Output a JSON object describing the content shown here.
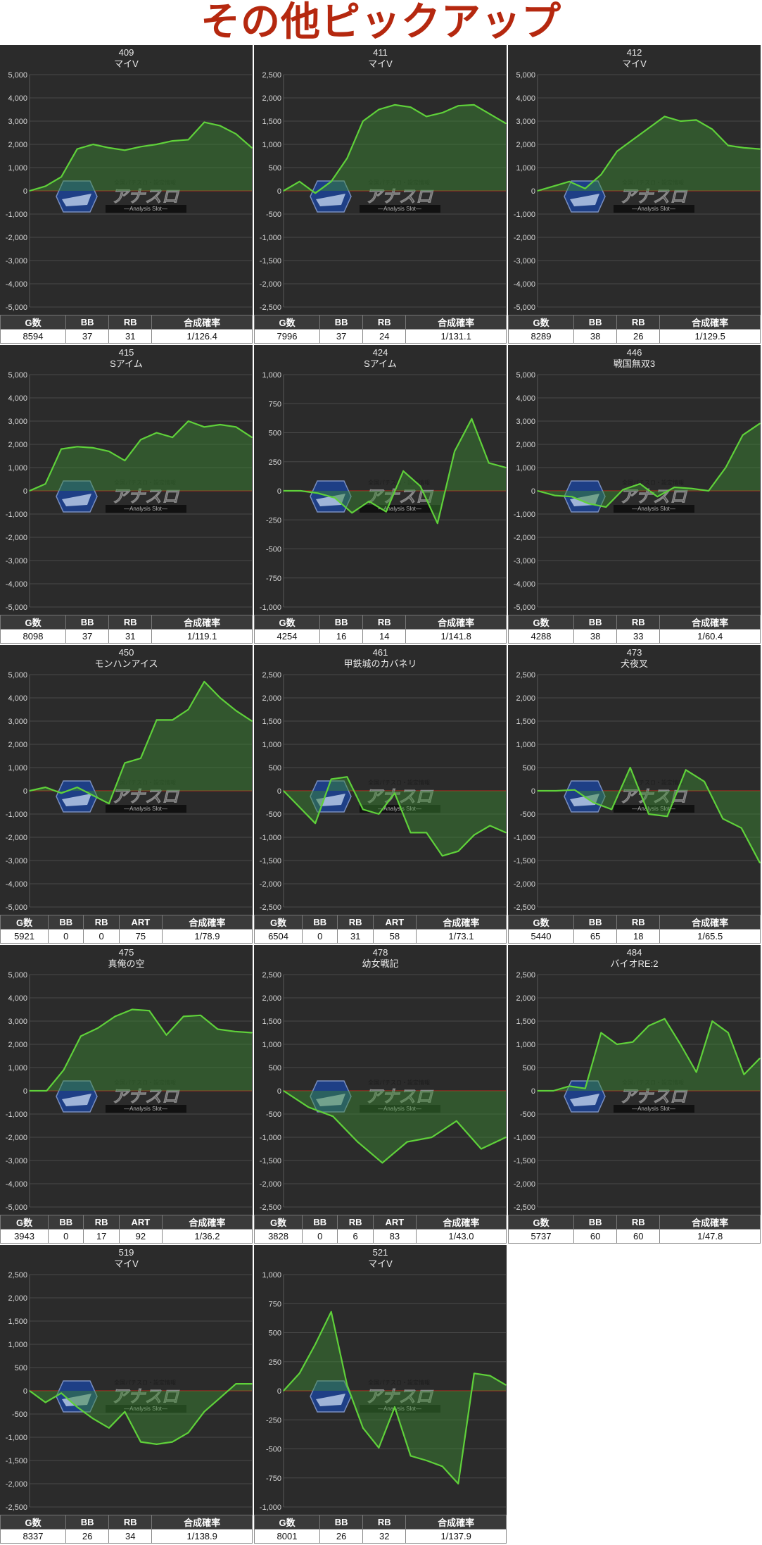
{
  "page_title": "その他ピックアップ",
  "watermark": {
    "top_text": "全国パチスロ・設定情報",
    "main_text": "アナスロ",
    "sub_text": "—Analysis Slot—"
  },
  "colors": {
    "line": "#5fd13a",
    "fill": "rgba(60,140,50,0.45)",
    "zero_line": "#c0281e",
    "grid": "#4a4a4a",
    "title": "#b5280f"
  },
  "chart_data": [
    {
      "type": "area",
      "id": "409",
      "machine": "マイV",
      "ylim": [
        -5000,
        5000
      ],
      "ticks": [
        5000,
        4000,
        3000,
        2000,
        1000,
        0,
        -1000,
        -2000,
        -3000,
        -4000,
        -5000
      ],
      "values": [
        0,
        200,
        600,
        1800,
        2000,
        1850,
        1750,
        1900,
        2000,
        2150,
        2200,
        2950,
        2800,
        2450,
        1850
      ],
      "stats": {
        "headers": [
          "G数",
          "BB",
          "RB",
          "合成確率"
        ],
        "values": [
          "8594",
          "37",
          "31",
          "1/126.4"
        ]
      }
    },
    {
      "type": "area",
      "id": "411",
      "machine": "マイV",
      "ylim": [
        -2500,
        2500
      ],
      "ticks": [
        2500,
        2000,
        1500,
        1000,
        500,
        0,
        -500,
        -1000,
        -1500,
        -2000,
        -2500
      ],
      "values": [
        0,
        200,
        -50,
        200,
        700,
        1500,
        1750,
        1850,
        1800,
        1600,
        1680,
        1830,
        1850,
        1650,
        1450
      ],
      "stats": {
        "headers": [
          "G数",
          "BB",
          "RB",
          "合成確率"
        ],
        "values": [
          "7996",
          "37",
          "24",
          "1/131.1"
        ]
      }
    },
    {
      "type": "area",
      "id": "412",
      "machine": "マイV",
      "ylim": [
        -5000,
        5000
      ],
      "ticks": [
        5000,
        4000,
        3000,
        2000,
        1000,
        0,
        -1000,
        -2000,
        -3000,
        -4000,
        -5000
      ],
      "values": [
        0,
        200,
        400,
        100,
        700,
        1700,
        2200,
        2700,
        3200,
        3000,
        3050,
        2650,
        1950,
        1850,
        1800
      ],
      "stats": {
        "headers": [
          "G数",
          "BB",
          "RB",
          "合成確率"
        ],
        "values": [
          "8289",
          "38",
          "26",
          "1/129.5"
        ]
      }
    },
    {
      "type": "area",
      "id": "415",
      "machine": "Sアイム",
      "ylim": [
        -5000,
        5000
      ],
      "ticks": [
        5000,
        4000,
        3000,
        2000,
        1000,
        0,
        -1000,
        -2000,
        -3000,
        -4000,
        -5000
      ],
      "values": [
        0,
        300,
        1800,
        1900,
        1850,
        1700,
        1300,
        2200,
        2500,
        2300,
        3000,
        2750,
        2850,
        2750,
        2300
      ],
      "stats": {
        "headers": [
          "G数",
          "BB",
          "RB",
          "合成確率"
        ],
        "values": [
          "8098",
          "37",
          "31",
          "1/119.1"
        ]
      }
    },
    {
      "type": "area",
      "id": "424",
      "machine": "Sアイム",
      "ylim": [
        -1000,
        1000
      ],
      "ticks": [
        1000,
        750,
        500,
        250,
        0,
        -250,
        -500,
        -750,
        -1000
      ],
      "values": [
        0,
        0,
        -20,
        -60,
        -190,
        -90,
        -180,
        170,
        40,
        -280,
        340,
        620,
        240,
        200
      ],
      "stats": {
        "headers": [
          "G数",
          "BB",
          "RB",
          "合成確率"
        ],
        "values": [
          "4254",
          "16",
          "14",
          "1/141.8"
        ]
      }
    },
    {
      "type": "area",
      "id": "446",
      "machine": "戦国無双3",
      "ylim": [
        -5000,
        5000
      ],
      "ticks": [
        5000,
        4000,
        3000,
        2000,
        1000,
        0,
        -1000,
        -2000,
        -3000,
        -4000,
        -5000
      ],
      "values": [
        0,
        -200,
        -250,
        -550,
        -700,
        50,
        300,
        -250,
        150,
        100,
        0,
        1000,
        2400,
        2900
      ],
      "stats": {
        "headers": [
          "G数",
          "BB",
          "RB",
          "合成確率"
        ],
        "values": [
          "4288",
          "38",
          "33",
          "1/60.4"
        ]
      }
    },
    {
      "type": "area",
      "id": "450",
      "machine": "モンハンアイス",
      "ylim": [
        -5000,
        5000
      ],
      "ticks": [
        5000,
        4000,
        3000,
        2000,
        1000,
        0,
        -1000,
        -2000,
        -3000,
        -4000,
        -5000
      ],
      "values": [
        0,
        150,
        -100,
        150,
        -200,
        -550,
        1200,
        1400,
        3050,
        3050,
        3500,
        4700,
        4000,
        3450,
        3000
      ],
      "stats": {
        "headers": [
          "G数",
          "BB",
          "RB",
          "ART",
          "合成確率"
        ],
        "values": [
          "5921",
          "0",
          "0",
          "75",
          "1/78.9"
        ]
      }
    },
    {
      "type": "area",
      "id": "461",
      "machine": "甲鉄城のカバネリ",
      "ylim": [
        -2500,
        2500
      ],
      "ticks": [
        2500,
        2000,
        1500,
        1000,
        500,
        0,
        -500,
        -1000,
        -1500,
        -2000,
        -2500
      ],
      "values": [
        0,
        -350,
        -700,
        250,
        300,
        -400,
        -500,
        -50,
        -900,
        -900,
        -1400,
        -1300,
        -950,
        -750,
        -900
      ],
      "stats": {
        "headers": [
          "G数",
          "BB",
          "RB",
          "ART",
          "合成確率"
        ],
        "values": [
          "6504",
          "0",
          "31",
          "58",
          "1/73.1"
        ]
      }
    },
    {
      "type": "area",
      "id": "473",
      "machine": "犬夜叉",
      "ylim": [
        -2500,
        2500
      ],
      "ticks": [
        2500,
        2000,
        1500,
        1000,
        500,
        0,
        -500,
        -1000,
        -1500,
        -2000,
        -2500
      ],
      "values": [
        0,
        0,
        20,
        -250,
        -400,
        500,
        -500,
        -550,
        450,
        200,
        -600,
        -800,
        -1550
      ],
      "stats": {
        "headers": [
          "G数",
          "BB",
          "RB",
          "合成確率"
        ],
        "values": [
          "5440",
          "65",
          "18",
          "1/65.5"
        ]
      }
    },
    {
      "type": "area",
      "id": "475",
      "machine": "真俺の空",
      "ylim": [
        -5000,
        5000
      ],
      "ticks": [
        5000,
        4000,
        3000,
        2000,
        1000,
        0,
        -1000,
        -2000,
        -3000,
        -4000,
        -5000
      ],
      "values": [
        0,
        0,
        900,
        2350,
        2700,
        3200,
        3500,
        3450,
        2400,
        3200,
        3250,
        2650,
        2550,
        2500
      ],
      "stats": {
        "headers": [
          "G数",
          "BB",
          "RB",
          "ART",
          "合成確率"
        ],
        "values": [
          "3943",
          "0",
          "17",
          "92",
          "1/36.2"
        ]
      }
    },
    {
      "type": "area",
      "id": "478",
      "machine": "幼女戦記",
      "ylim": [
        -2500,
        2500
      ],
      "ticks": [
        2500,
        2000,
        1500,
        1000,
        500,
        0,
        -500,
        -1000,
        -1500,
        -2000,
        -2500
      ],
      "values": [
        0,
        -350,
        -550,
        -1100,
        -1550,
        -1100,
        -1000,
        -650,
        -1250,
        -1000
      ],
      "stats": {
        "headers": [
          "G数",
          "BB",
          "RB",
          "ART",
          "合成確率"
        ],
        "values": [
          "3828",
          "0",
          "6",
          "83",
          "1/43.0"
        ]
      }
    },
    {
      "type": "area",
      "id": "484",
      "machine": "バイオRE:2",
      "ylim": [
        -2500,
        2500
      ],
      "ticks": [
        2500,
        2000,
        1500,
        1000,
        500,
        0,
        -500,
        -1000,
        -1500,
        -2000,
        -2500
      ],
      "values": [
        0,
        0,
        100,
        50,
        1250,
        1000,
        1050,
        1400,
        1550,
        1000,
        400,
        1500,
        1250,
        350,
        700
      ],
      "stats": {
        "headers": [
          "G数",
          "BB",
          "RB",
          "合成確率"
        ],
        "values": [
          "5737",
          "60",
          "60",
          "1/47.8"
        ]
      }
    },
    {
      "type": "area",
      "id": "519",
      "machine": "マイV",
      "ylim": [
        -2500,
        2500
      ],
      "ticks": [
        2500,
        2000,
        1500,
        1000,
        500,
        0,
        -500,
        -1000,
        -1500,
        -2000,
        -2500
      ],
      "values": [
        0,
        -250,
        -50,
        -350,
        -600,
        -800,
        -450,
        -1100,
        -1150,
        -1100,
        -900,
        -450,
        -150,
        150,
        150
      ],
      "stats": {
        "headers": [
          "G数",
          "BB",
          "RB",
          "合成確率"
        ],
        "values": [
          "8337",
          "26",
          "34",
          "1/138.9"
        ]
      }
    },
    {
      "type": "area",
      "id": "521",
      "machine": "マイV",
      "ylim": [
        -1000,
        1000
      ],
      "ticks": [
        1000,
        750,
        500,
        250,
        0,
        -250,
        -500,
        -750,
        -1000
      ],
      "values": [
        0,
        150,
        400,
        680,
        50,
        -320,
        -490,
        -140,
        -560,
        -600,
        -650,
        -800,
        150,
        130,
        50
      ],
      "stats": {
        "headers": [
          "G数",
          "BB",
          "RB",
          "合成確率"
        ],
        "values": [
          "8001",
          "26",
          "32",
          "1/137.9"
        ]
      }
    }
  ]
}
